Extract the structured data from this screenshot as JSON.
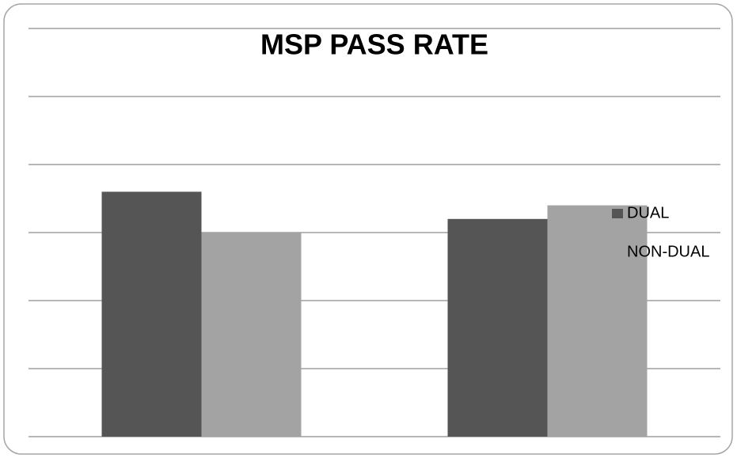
{
  "chart_data": {
    "type": "bar",
    "title": "MSP PASS RATE",
    "categories": [
      null,
      null
    ],
    "series": [
      {
        "name": "DUAL",
        "color": "#555555",
        "values": [
          3.6,
          3.2
        ]
      },
      {
        "name": "NON-DUAL",
        "color": "#a3a3a3",
        "values": [
          3.0,
          3.4
        ]
      }
    ],
    "ylim": [
      0,
      6
    ],
    "yticks": [
      0,
      1,
      2,
      3,
      4,
      5,
      6
    ],
    "grid": true,
    "legend": "right"
  }
}
